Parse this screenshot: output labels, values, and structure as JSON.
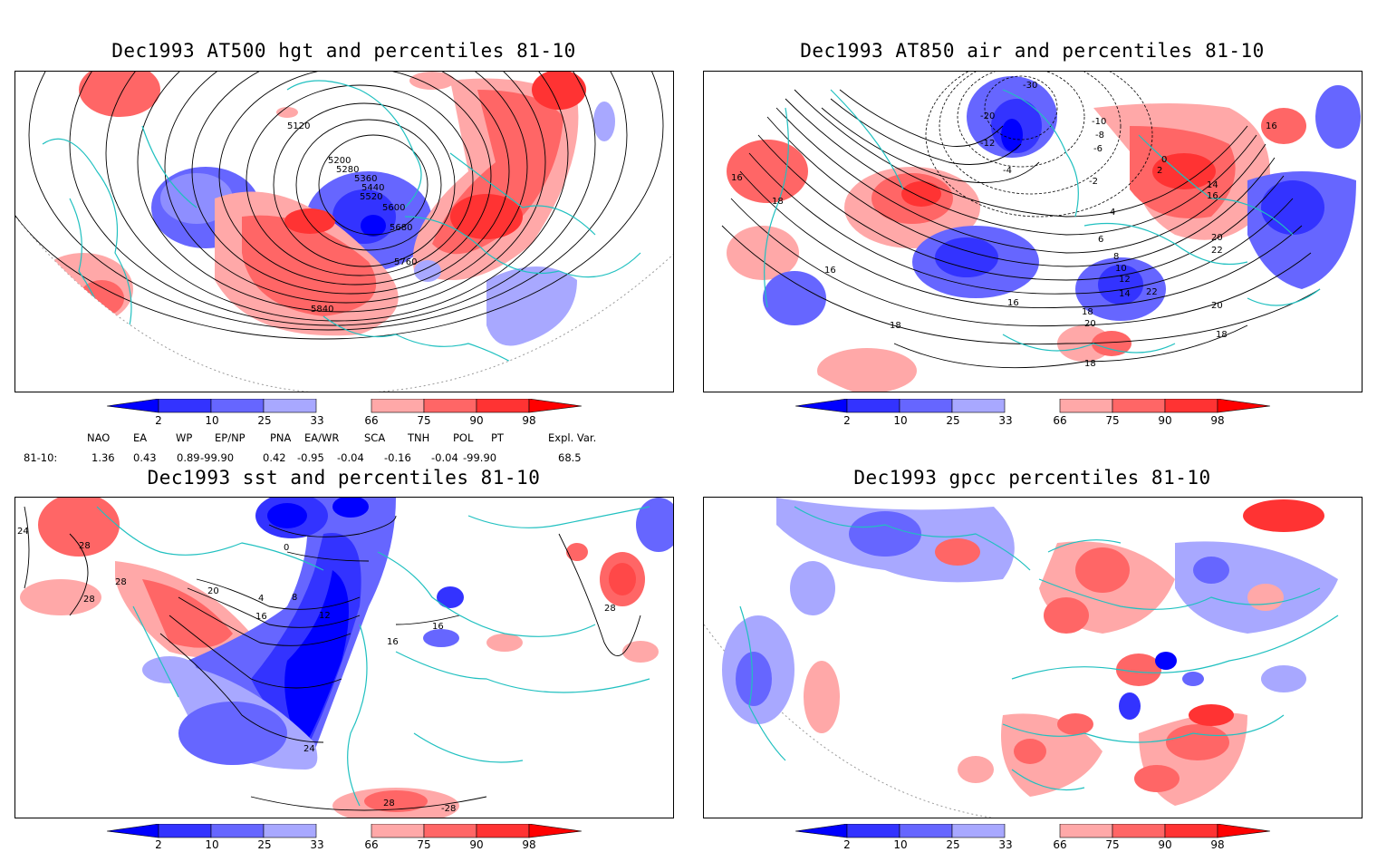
{
  "panels": [
    {
      "id": "p1",
      "title": "Dec1993 AT500 hgt and percentiles 81-10",
      "contour_labels": [
        "5120",
        "5200",
        "5280",
        "5360",
        "5440",
        "5520",
        "5600",
        "5680",
        "5760",
        "5840"
      ]
    },
    {
      "id": "p2",
      "title": "Dec1993 AT850 air and percentiles 81-10",
      "contour_labels": [
        "16",
        "18",
        "16",
        "16",
        "18",
        "18",
        "20",
        "22",
        "20",
        "18",
        "22",
        "20",
        "18",
        "16",
        "14",
        "-30",
        "-20",
        "-12",
        "-4",
        "-2",
        "0",
        "2",
        "4",
        "6",
        "8",
        "10",
        "12",
        "14",
        "16",
        "-10",
        "-8",
        "-6"
      ]
    },
    {
      "id": "p3",
      "title": "Dec1993 sst and percentiles 81-10",
      "contour_labels": [
        "24",
        "28",
        "28",
        "28",
        "20",
        "16",
        "12",
        "8",
        "4",
        "0",
        "16",
        "16",
        "28",
        "-28",
        "24",
        "28"
      ]
    },
    {
      "id": "p4",
      "title": "Dec1993 gpcc percentiles 81-10",
      "contour_labels": []
    }
  ],
  "colorbar": {
    "ticks": [
      "2",
      "10",
      "25",
      "33",
      "66",
      "75",
      "90",
      "98"
    ],
    "colors": {
      "lt2": "#0000ff",
      "b2_10": "#3333ff",
      "b10_25": "#6666ff",
      "b25_33": "#a8a8ff",
      "b66_75": "#ffa8a8",
      "b75_90": "#ff6666",
      "b90_98": "#ff3333",
      "gt98": "#ff0000"
    }
  },
  "indices": {
    "row_label": "81-10:",
    "headers": [
      "NAO",
      "EA",
      "WP",
      "EP/NP",
      "PNA",
      "EA/WR",
      "SCA",
      "TNH",
      "POL",
      "PT",
      "Expl. Var."
    ],
    "values": [
      "1.36",
      "0.43",
      "0.89",
      "-99.90",
      "0.42",
      "-0.95",
      "-0.04",
      "-0.16",
      "-0.04",
      "-99.90",
      "68.5"
    ]
  },
  "map_colors": {
    "coast": "#20c0c0",
    "contour": "#000000",
    "grid": "#888888"
  }
}
